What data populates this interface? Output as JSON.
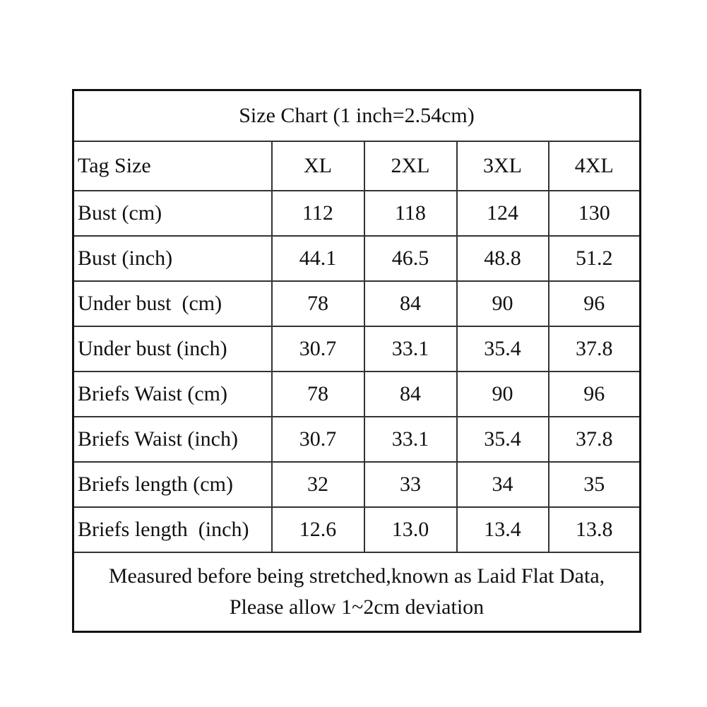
{
  "table": {
    "title": "Size Chart (1 inch=2.54cm)",
    "header": [
      "Tag Size",
      "XL",
      "2XL",
      "3XL",
      "4XL"
    ],
    "rows": [
      [
        "Bust (cm)",
        "112",
        "118",
        "124",
        "130"
      ],
      [
        "Bust (inch)",
        "44.1",
        "46.5",
        "48.8",
        "51.2"
      ],
      [
        "Under bust  (cm)",
        "78",
        "84",
        "90",
        "96"
      ],
      [
        "Under bust (inch)",
        "30.7",
        "33.1",
        "35.4",
        "37.8"
      ],
      [
        "Briefs Waist (cm)",
        "78",
        "84",
        "90",
        "96"
      ],
      [
        "Briefs Waist (inch)",
        "30.7",
        "33.1",
        "35.4",
        "37.8"
      ],
      [
        "Briefs length (cm)",
        "32",
        "33",
        "34",
        "35"
      ],
      [
        "Briefs length  (inch)",
        "12.6",
        "13.0",
        "13.4",
        "13.8"
      ]
    ],
    "footer": [
      "Measured before being stretched,known as Laid Flat Data,",
      "Please allow 1~2cm deviation"
    ]
  }
}
